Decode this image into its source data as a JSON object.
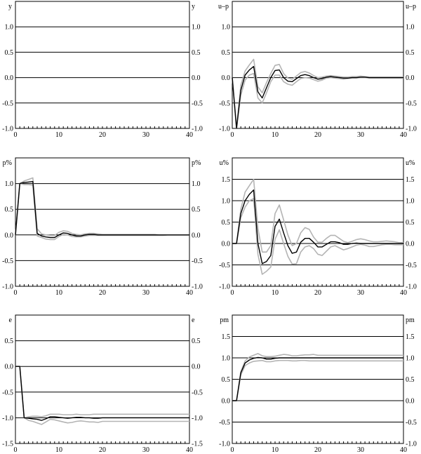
{
  "colors": {
    "estimate": "#000000",
    "band": "#b4b4b4",
    "grid": "#000000"
  },
  "chart_data": [
    {
      "type": "line",
      "label": "y",
      "xlim": [
        0,
        40
      ],
      "ylim": [
        -1.0,
        1.5
      ],
      "xticks": [
        "0",
        "10",
        "20",
        "30",
        "40"
      ],
      "yticks": [
        "1.0",
        "0.5",
        "0.0",
        "-0.5",
        "-1.0"
      ],
      "grid": true,
      "series": []
    },
    {
      "type": "line",
      "label": "u–p",
      "xlim": [
        0,
        40
      ],
      "ylim": [
        -1.0,
        1.5
      ],
      "xticks": [
        "0",
        "10",
        "20",
        "30",
        "40"
      ],
      "yticks": [
        "1.0",
        "0.5",
        "0.0",
        "-0.5",
        "-1.0"
      ],
      "grid": true,
      "series": [
        {
          "role": "upper",
          "values": [
            0,
            -1.0,
            -0.15,
            0.13,
            0.25,
            0.36,
            -0.18,
            -0.3,
            -0.1,
            0.08,
            0.24,
            0.26,
            0.08,
            -0.01,
            -0.03,
            0.03,
            0.1,
            0.12,
            0.09,
            0.04,
            0.0,
            0.01,
            0.03,
            0.04,
            0.03,
            0.02,
            0.01,
            0.01,
            0.02,
            0.02,
            0.03,
            0.02,
            0.01,
            0.01,
            0.01,
            0.01,
            0.01,
            0.01,
            0.01,
            0.01,
            0.01
          ]
        },
        {
          "role": "lower",
          "values": [
            0,
            -1.0,
            -0.35,
            -0.05,
            0.05,
            0.08,
            -0.4,
            -0.5,
            -0.3,
            -0.08,
            0.05,
            0.05,
            -0.08,
            -0.13,
            -0.15,
            -0.08,
            -0.02,
            0.0,
            -0.01,
            -0.04,
            -0.07,
            -0.05,
            -0.01,
            0.0,
            -0.01,
            -0.02,
            -0.03,
            -0.02,
            -0.01,
            -0.01,
            0,
            0,
            -0.01,
            -0.01,
            -0.01,
            -0.01,
            -0.01,
            -0.01,
            -0.01,
            -0.01,
            -0.01
          ]
        },
        {
          "role": "estimate",
          "values": [
            0,
            -1.0,
            -0.25,
            0.05,
            0.15,
            0.22,
            -0.28,
            -0.4,
            -0.2,
            0.0,
            0.14,
            0.15,
            0.0,
            -0.07,
            -0.08,
            -0.02,
            0.04,
            0.06,
            0.04,
            0.0,
            -0.03,
            -0.02,
            0.01,
            0.02,
            0.01,
            0,
            -0.01,
            -0.01,
            0,
            0,
            0.01,
            0.01,
            0,
            0,
            0,
            0,
            0,
            0,
            0,
            0,
            0
          ]
        }
      ]
    },
    {
      "type": "line",
      "label": "p%",
      "xlim": [
        0,
        40
      ],
      "ylim": [
        -1.0,
        1.5
      ],
      "xticks": [
        "0",
        "10",
        "20",
        "30",
        "40"
      ],
      "yticks": [
        "1.0",
        "0.5",
        "0.0",
        "-0.5",
        "-1.0"
      ],
      "grid": true,
      "series": [
        {
          "role": "upper",
          "values": [
            0,
            1.0,
            1.05,
            1.08,
            1.11,
            0.12,
            0.02,
            0.0,
            -0.01,
            -0.01,
            0.05,
            0.08,
            0.07,
            0.03,
            0.01,
            0.0,
            0.02,
            0.03,
            0.03,
            0.02,
            0.01,
            0.01,
            0.01,
            0.01,
            0.01,
            0.01,
            0.01,
            0.01,
            0.01,
            0.01,
            0.01,
            0.01,
            0.01,
            0,
            0,
            0,
            0,
            0,
            0,
            0,
            0
          ]
        },
        {
          "role": "lower",
          "values": [
            0,
            1.0,
            0.98,
            0.98,
            0.97,
            -0.02,
            -0.05,
            -0.08,
            -0.09,
            -0.09,
            -0.03,
            0.01,
            0.0,
            -0.03,
            -0.04,
            -0.04,
            -0.02,
            -0.01,
            -0.01,
            -0.01,
            -0.01,
            -0.01,
            -0.01,
            -0.01,
            -0.01,
            -0.01,
            -0.01,
            -0.01,
            -0.01,
            -0.01,
            -0.01,
            -0.01,
            -0.01,
            -0.01,
            -0.01,
            0,
            0,
            0,
            0,
            0,
            0
          ]
        },
        {
          "role": "estimate",
          "values": [
            0,
            1.0,
            1.02,
            1.03,
            1.04,
            0.03,
            -0.02,
            -0.04,
            -0.05,
            -0.05,
            0.0,
            0.04,
            0.03,
            0.0,
            -0.02,
            -0.02,
            0,
            0.01,
            0.01,
            0,
            0,
            0,
            0,
            0,
            0,
            0,
            0,
            0,
            0,
            0,
            0,
            0,
            0,
            0,
            0,
            0,
            0,
            0,
            0,
            0,
            0
          ]
        }
      ]
    },
    {
      "type": "line",
      "label": "u%",
      "xlim": [
        0,
        40
      ],
      "ylim": [
        -1.0,
        2.0
      ],
      "xticks": [
        "0",
        "10",
        "20",
        "30",
        "40"
      ],
      "yticks": [
        "1.5",
        "1.0",
        "0.5",
        "0.0",
        "-0.5",
        "-1.0"
      ],
      "grid": true,
      "series": [
        {
          "role": "upper",
          "values": [
            0,
            0,
            0.8,
            1.2,
            1.35,
            1.5,
            0.35,
            -0.2,
            -0.2,
            -0.05,
            0.7,
            0.9,
            0.55,
            0.2,
            -0.05,
            0.0,
            0.25,
            0.37,
            0.33,
            0.15,
            0.03,
            0.03,
            0.12,
            0.19,
            0.19,
            0.12,
            0.05,
            0.02,
            0.05,
            0.09,
            0.11,
            0.09,
            0.06,
            0.04,
            0.04,
            0.05,
            0.06,
            0.05,
            0.04,
            0.02,
            0.02
          ]
        },
        {
          "role": "lower",
          "values": [
            0,
            0,
            0.6,
            0.85,
            1.0,
            1.05,
            -0.25,
            -0.72,
            -0.65,
            -0.55,
            0.1,
            0.32,
            0.0,
            -0.3,
            -0.48,
            -0.47,
            -0.2,
            -0.08,
            -0.05,
            -0.12,
            -0.25,
            -0.28,
            -0.18,
            -0.08,
            -0.05,
            -0.1,
            -0.15,
            -0.12,
            -0.08,
            -0.04,
            -0.02,
            -0.04,
            -0.07,
            -0.07,
            -0.05,
            -0.03,
            -0.02,
            -0.02,
            -0.03,
            -0.03,
            -0.03
          ]
        },
        {
          "role": "estimate",
          "values": [
            0,
            0,
            0.7,
            1.0,
            1.15,
            1.25,
            0.0,
            -0.47,
            -0.42,
            -0.28,
            0.4,
            0.57,
            0.25,
            -0.05,
            -0.23,
            -0.2,
            0.03,
            0.12,
            0.12,
            0.03,
            -0.08,
            -0.08,
            -0.02,
            0.04,
            0.04,
            0.02,
            -0.02,
            -0.02,
            0,
            0.01,
            0,
            0,
            0,
            0,
            0,
            0,
            0,
            0,
            0,
            0,
            0
          ]
        }
      ]
    },
    {
      "type": "line",
      "label": "e",
      "xlim": [
        0,
        40
      ],
      "ylim": [
        -1.5,
        1.0
      ],
      "xticks": [
        "0",
        "10",
        "20",
        "30",
        "40"
      ],
      "yticks": [
        "0.5",
        "0.0",
        "-0.5",
        "-1.0",
        "-1.5"
      ],
      "grid": true,
      "series": [
        {
          "role": "upper",
          "values": [
            0,
            0,
            -1.0,
            -0.98,
            -0.97,
            -0.97,
            -0.98,
            -0.96,
            -0.93,
            -0.93,
            -0.93,
            -0.94,
            -0.94,
            -0.94,
            -0.93,
            -0.94,
            -0.94,
            -0.94,
            -0.93,
            -0.93,
            -0.93,
            -0.93,
            -0.93,
            -0.93,
            -0.93,
            -0.93,
            -0.93,
            -0.93,
            -0.93,
            -0.93,
            -0.93,
            -0.93,
            -0.93,
            -0.93,
            -0.93,
            -0.93,
            -0.93,
            -0.93,
            -0.93,
            -0.93,
            -0.93
          ]
        },
        {
          "role": "lower",
          "values": [
            0,
            0,
            -1.0,
            -1.05,
            -1.07,
            -1.1,
            -1.13,
            -1.08,
            -1.03,
            -1.04,
            -1.06,
            -1.08,
            -1.1,
            -1.09,
            -1.07,
            -1.06,
            -1.07,
            -1.08,
            -1.08,
            -1.09,
            -1.07,
            -1.07,
            -1.07,
            -1.07,
            -1.07,
            -1.07,
            -1.07,
            -1.07,
            -1.07,
            -1.07,
            -1.07,
            -1.07,
            -1.07,
            -1.07,
            -1.07,
            -1.07,
            -1.07,
            -1.07,
            -1.07,
            -1.07,
            -1.07
          ]
        },
        {
          "role": "estimate",
          "values": [
            0,
            0,
            -1.0,
            -1.01,
            -1.02,
            -1.03,
            -1.05,
            -1.02,
            -0.98,
            -0.98,
            -0.99,
            -1.0,
            -1.01,
            -1.0,
            -0.99,
            -0.99,
            -1.0,
            -1.0,
            -1.01,
            -1.01,
            -1.0,
            -1.0,
            -1.0,
            -1.0,
            -1.0,
            -1.0,
            -1.0,
            -1.0,
            -1.0,
            -1.0,
            -1.0,
            -1.0,
            -1.0,
            -1.0,
            -1.0,
            -1.0,
            -1.0,
            -1.0,
            -1.0,
            -1.0,
            -1.0
          ]
        }
      ]
    },
    {
      "type": "line",
      "label": "pm",
      "xlim": [
        0,
        40
      ],
      "ylim": [
        -1.0,
        2.0
      ],
      "xticks": [
        "0",
        "10",
        "20",
        "30",
        "40"
      ],
      "yticks": [
        "1.5",
        "1.0",
        "0.5",
        "0.0",
        "-0.5",
        "-1.0"
      ],
      "grid": true,
      "series": [
        {
          "role": "upper",
          "values": [
            0,
            0,
            0.68,
            0.93,
            1.02,
            1.06,
            1.1,
            1.05,
            1.03,
            1.03,
            1.04,
            1.06,
            1.08,
            1.07,
            1.05,
            1.05,
            1.06,
            1.07,
            1.07,
            1.08,
            1.06,
            1.06,
            1.06,
            1.06,
            1.06,
            1.06,
            1.06,
            1.06,
            1.06,
            1.06,
            1.06,
            1.06,
            1.06,
            1.06,
            1.06,
            1.06,
            1.06,
            1.06,
            1.06,
            1.06,
            1.06
          ]
        },
        {
          "role": "lower",
          "values": [
            0,
            0,
            0.6,
            0.82,
            0.88,
            0.92,
            0.93,
            0.94,
            0.91,
            0.91,
            0.93,
            0.94,
            0.94,
            0.94,
            0.93,
            0.93,
            0.94,
            0.94,
            0.93,
            0.93,
            0.93,
            0.93,
            0.93,
            0.93,
            0.93,
            0.93,
            0.93,
            0.93,
            0.93,
            0.93,
            0.93,
            0.93,
            0.93,
            0.93,
            0.93,
            0.93,
            0.93,
            0.93,
            0.93,
            0.93,
            0.93
          ]
        },
        {
          "role": "estimate",
          "values": [
            0,
            0,
            0.65,
            0.88,
            0.95,
            0.99,
            1.01,
            1.0,
            0.97,
            0.97,
            0.99,
            1.0,
            1.0,
            1.0,
            1.0,
            1.0,
            1.0,
            1.0,
            1.0,
            1.0,
            1.0,
            1.0,
            1.0,
            1.0,
            1.0,
            1.0,
            1.0,
            1.0,
            1.0,
            1.0,
            1.0,
            1.0,
            1.0,
            1.0,
            1.0,
            1.0,
            1.0,
            1.0,
            1.0,
            1.0,
            1.0
          ]
        }
      ]
    }
  ]
}
